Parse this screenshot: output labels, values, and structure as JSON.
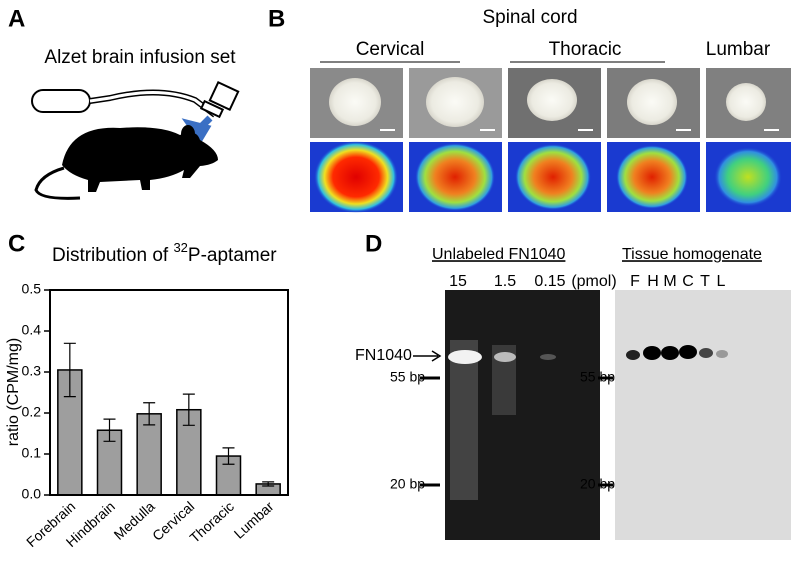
{
  "panels": {
    "a": {
      "letter": "A",
      "title": "Alzet brain infusion set"
    },
    "b": {
      "letter": "B",
      "title": "Spinal cord",
      "regions": [
        "Cervical",
        "Thoracic",
        "Lumbar"
      ]
    },
    "d": {
      "letter": "D",
      "gel1": {
        "title": "Unlabeled FN1040",
        "lanes": [
          "15",
          "1.5",
          "0.15"
        ],
        "unit": "(pmol)",
        "band": "FN1040",
        "markers": [
          "55 bp",
          "20 bp"
        ]
      },
      "gel2": {
        "title": "Tissue homogenate",
        "lanes": [
          "F",
          "H",
          "M",
          "C",
          "T",
          "L"
        ],
        "markers": [
          "55 bp",
          "20 bp"
        ]
      }
    }
  },
  "chart_data": {
    "type": "bar",
    "letter": "C",
    "title": {
      "prefix": "Distribution of ",
      "sup": "32",
      "suffix": "P-aptamer"
    },
    "ylabel": "ratio (CPM/mg)",
    "categories": [
      "Forebrain",
      "Hindbrain",
      "Medulla",
      "Cervical",
      "Thoracic",
      "Lumbar"
    ],
    "values": [
      0.305,
      0.158,
      0.198,
      0.208,
      0.095,
      0.027
    ],
    "errors": [
      0.065,
      0.027,
      0.027,
      0.038,
      0.02,
      0.005
    ],
    "color": "#9e9e9e",
    "ylim": [
      0,
      0.5
    ],
    "yticks": [
      {
        "value": 0,
        "label": "0.0"
      },
      0.1,
      0.2,
      0.3,
      0.4,
      0.5
    ]
  }
}
